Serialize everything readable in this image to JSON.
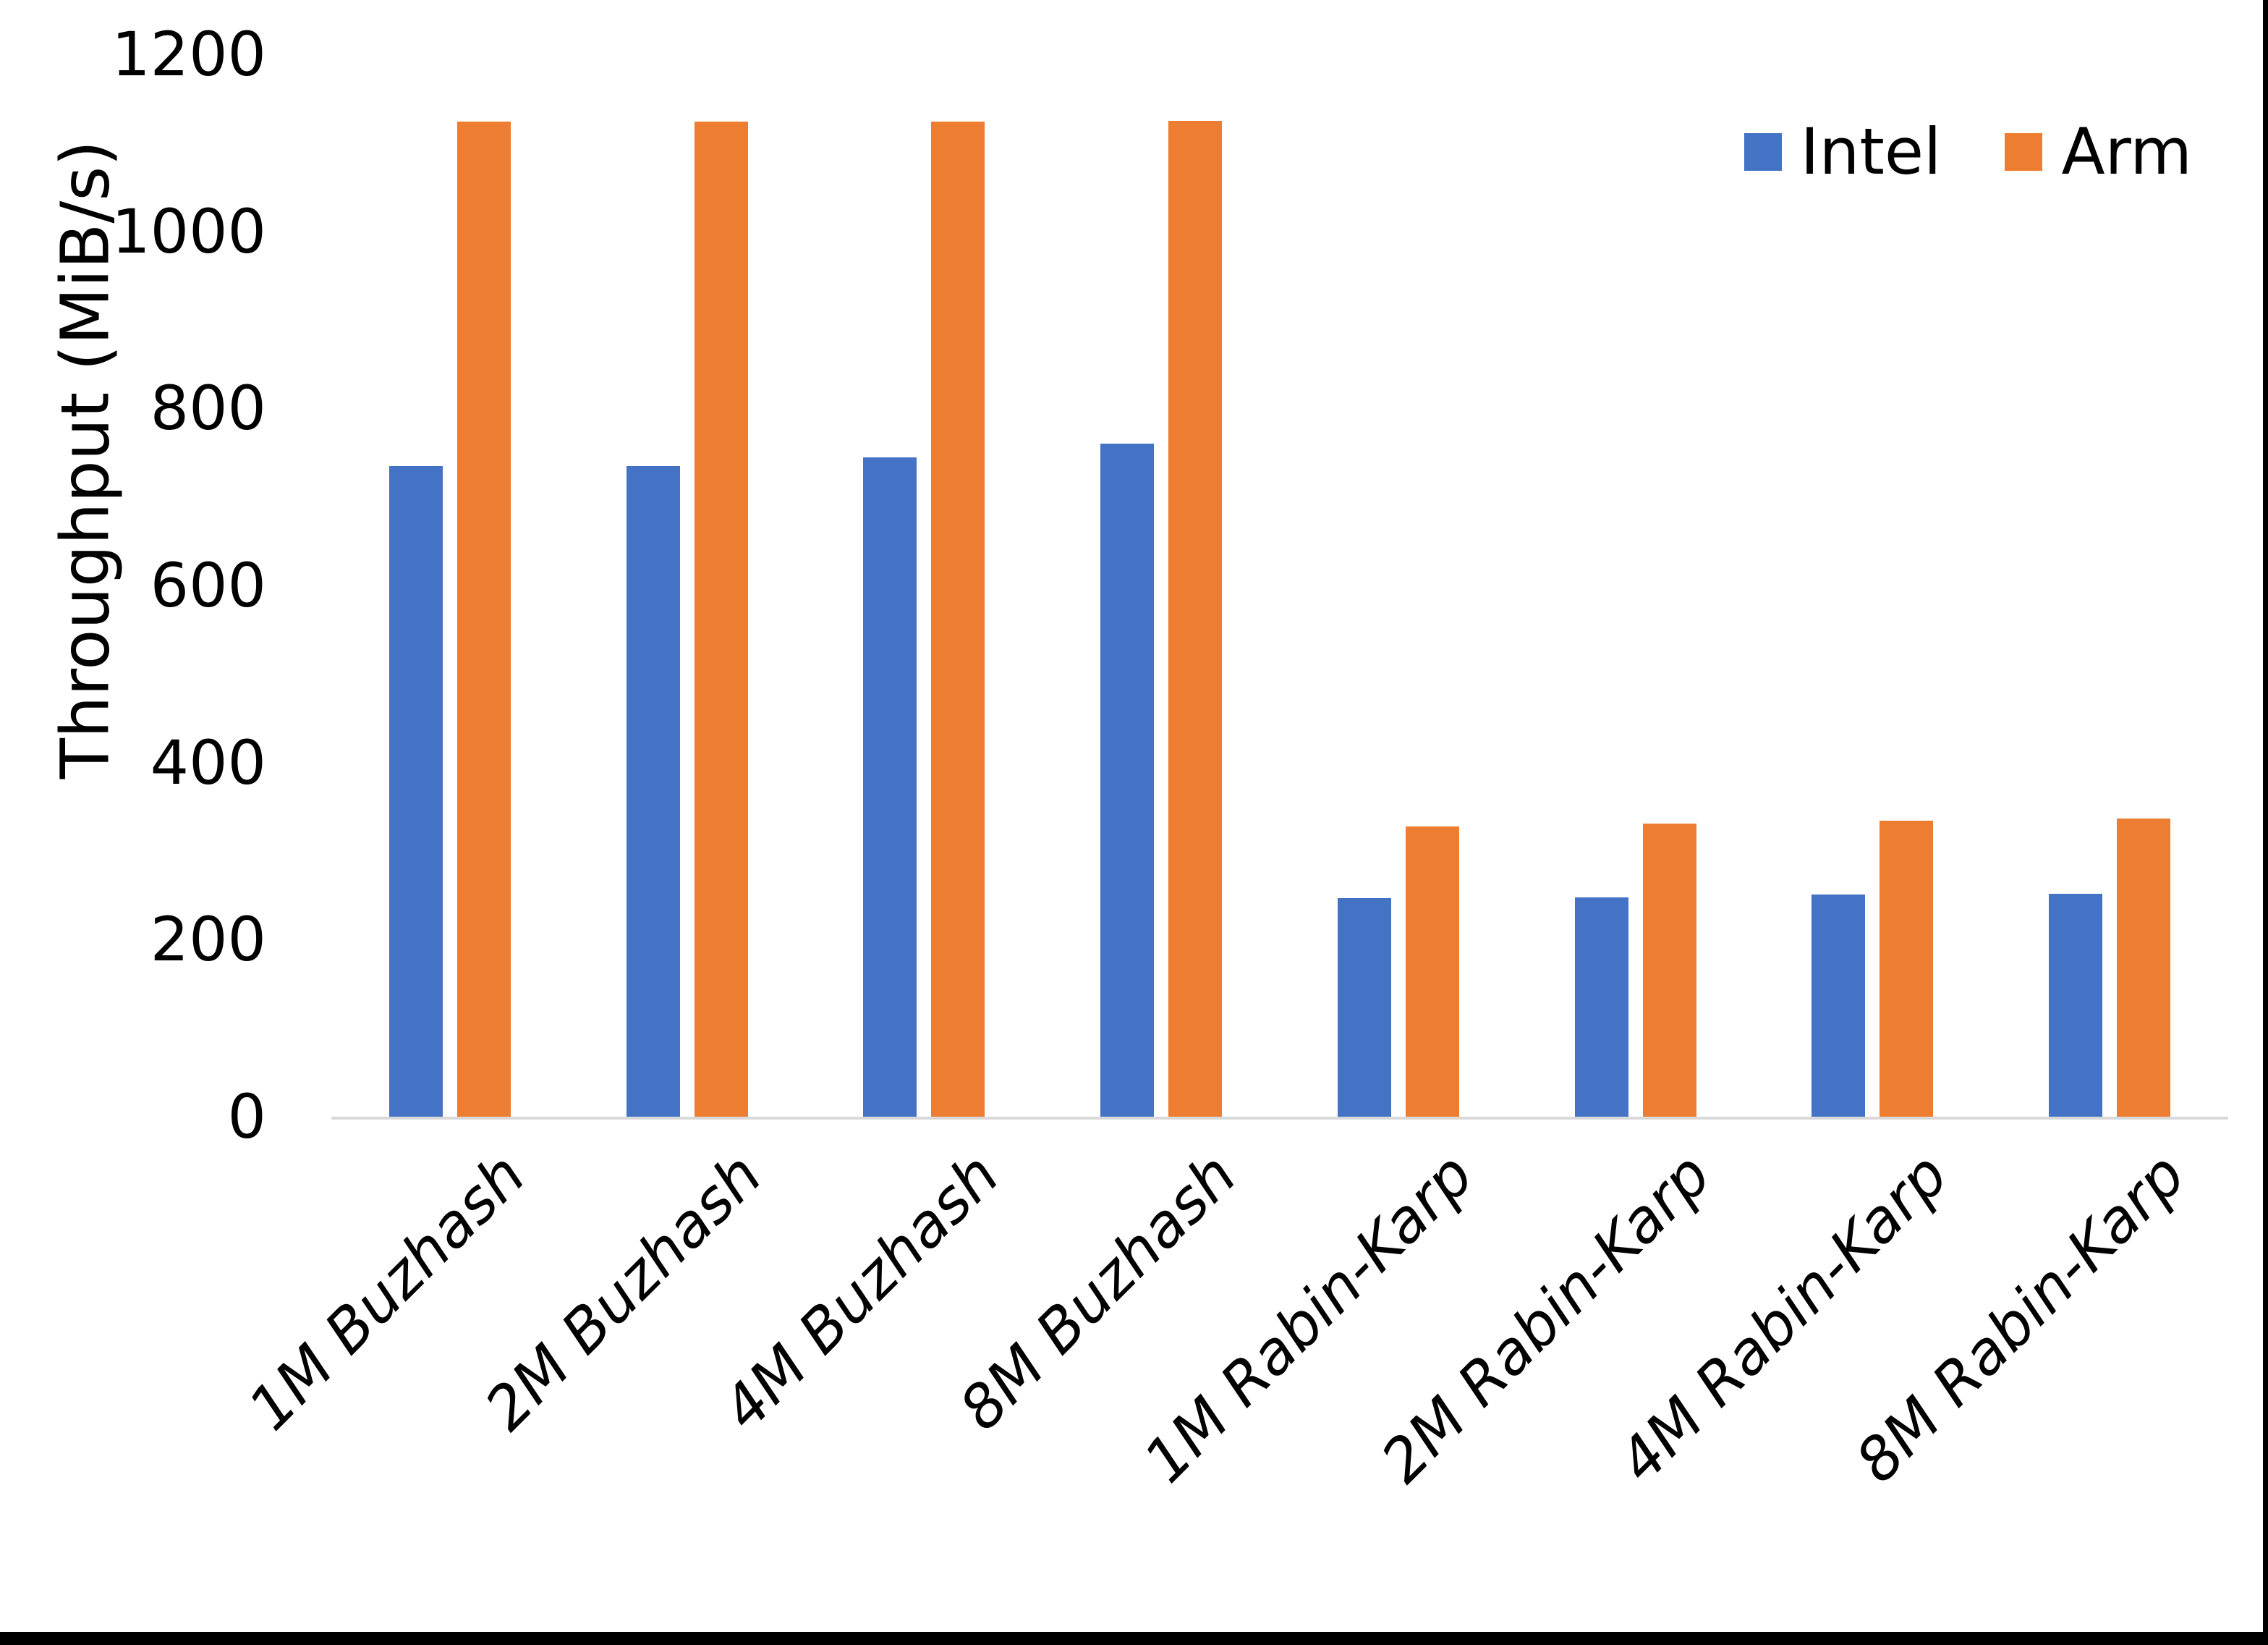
{
  "chart_data": {
    "type": "bar",
    "title": "",
    "xlabel": "",
    "ylabel": "Throughput (MiB/s)",
    "categories": [
      "1M Buzhash",
      "2M Buzhash",
      "4M Buzhash",
      "8M Buzhash",
      "1M Rabin-Karp",
      "2M Rabin-Karp",
      "4M Rabin-Karp",
      "8M Rabin-Karp"
    ],
    "series": [
      {
        "name": "Intel",
        "color": "#4472C4",
        "values": [
          735,
          735,
          745,
          760,
          247,
          248,
          251,
          252
        ]
      },
      {
        "name": "Arm",
        "color": "#ED7D31",
        "values": [
          1124,
          1124,
          1124,
          1125,
          328,
          331,
          334,
          337
        ]
      }
    ],
    "ylim": [
      0,
      1200
    ],
    "yticks": [
      0,
      200,
      400,
      600,
      800,
      1000,
      1200
    ],
    "grid": false,
    "legend_position": "top-right",
    "axis_line_color": "#D9D9D9",
    "page_border_color": "#000000"
  }
}
